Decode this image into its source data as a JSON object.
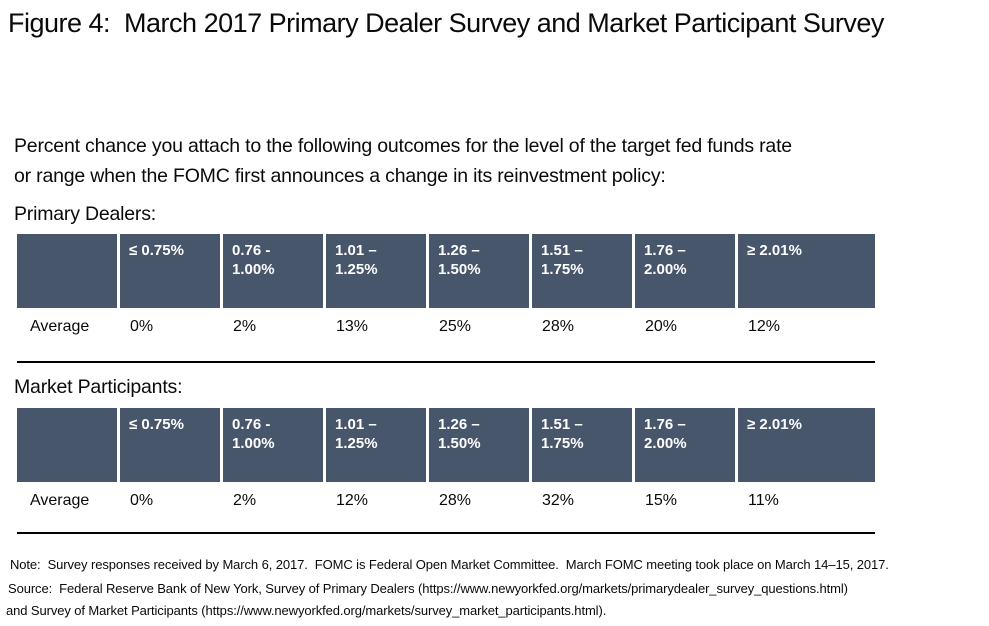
{
  "title": "Figure 4:  March 2017 Primary Dealer Survey and Market Participant Survey",
  "prompt_lines": [
    "Percent chance you attach to the following outcomes for the level of the target fed funds rate",
    "or range when the FOMC first announces a change in its reinvestment policy:"
  ],
  "columns": [
    "≤ 0.75%",
    "0.76 -\n1.00%",
    "1.01 –\n1.25%",
    "1.26 –\n1.50%",
    "1.51 –\n1.75%",
    "1.76 –\n2.00%",
    "≥ 2.01%"
  ],
  "tables": [
    {
      "label": "Primary Dealers:",
      "row_label": "Average",
      "values": [
        "0%",
        "2%",
        "13%",
        "25%",
        "28%",
        "20%",
        "12%"
      ]
    },
    {
      "label": "Market Participants:",
      "row_label": "Average",
      "values": [
        "0%",
        "2%",
        "12%",
        "28%",
        "32%",
        "15%",
        "11%"
      ]
    }
  ],
  "footer": {
    "note": "Note:  Survey responses received by March 6, 2017.  FOMC is Federal Open Market Committee.  March FOMC meeting took place on March 14–15, 2017.",
    "source_line1": "Source:  Federal Reserve Bank of New York, Survey of Primary Dealers (https://www.newyorkfed.org/markets/primarydealer_survey_questions.html)",
    "source_line2": "and Survey of Market Participants (https://www.newyorkfed.org/markets/survey_market_participants.html)."
  },
  "colors": {
    "header_bg": "#47566A",
    "header_text": "#ffffff",
    "divider": "#000000"
  },
  "chart_data": [
    {
      "type": "table",
      "title": "Primary Dealers",
      "categories": [
        "≤ 0.75%",
        "0.76 - 1.00%",
        "1.01 – 1.25%",
        "1.26 – 1.50%",
        "1.51 – 1.75%",
        "1.76 – 2.00%",
        "≥ 2.01%"
      ],
      "series": [
        {
          "name": "Average",
          "values": [
            0,
            2,
            13,
            25,
            28,
            20,
            12
          ]
        }
      ],
      "unit": "%"
    },
    {
      "type": "table",
      "title": "Market Participants",
      "categories": [
        "≤ 0.75%",
        "0.76 - 1.00%",
        "1.01 – 1.25%",
        "1.26 – 1.50%",
        "1.51 – 1.75%",
        "1.76 – 2.00%",
        "≥ 2.01%"
      ],
      "series": [
        {
          "name": "Average",
          "values": [
            0,
            2,
            12,
            28,
            32,
            15,
            11
          ]
        }
      ],
      "unit": "%"
    }
  ]
}
